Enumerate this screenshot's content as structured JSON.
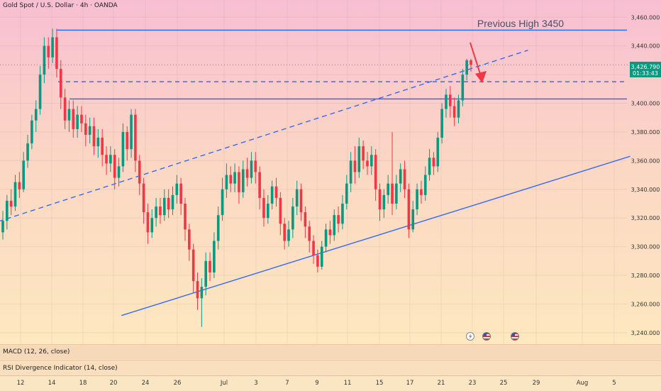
{
  "header": {
    "title": "Gold Spot / U.S. Dollar · 4h · OANDA"
  },
  "annotation": {
    "text": "Previous High 3450"
  },
  "price_badge": {
    "price": "3,426.790",
    "countdown": "01:33:43",
    "color": "#089981"
  },
  "indicators": {
    "macd": "MACD (12, 26, close)",
    "rsi": "RSI Divergence Indicator (14, close)"
  },
  "time_axis": [
    "12",
    "14",
    "18",
    "20",
    "24",
    "26",
    "Jul",
    "3",
    "7",
    "9",
    "11",
    "15",
    "17",
    "21",
    "23",
    "25",
    "29",
    "Aug",
    "5"
  ],
  "events": [
    {
      "icon": "lightning-icon"
    },
    {
      "icon": "us-flag-icon"
    },
    {
      "icon": "us-flag-icon"
    }
  ],
  "colors": {
    "up": "#089981",
    "down": "#f23645",
    "line": "#2962ff",
    "arrow": "#f23645"
  },
  "chart_data": {
    "type": "candlestick",
    "title": "Gold Spot / U.S. Dollar · 4h · OANDA",
    "y_ticks": [
      "3,460.000",
      "3,440.000",
      "3,420.000",
      "3,400.000",
      "3,380.000",
      "3,360.000",
      "3,340.000",
      "3,320.000",
      "3,300.000",
      "3,280.000",
      "3,260.000",
      "3,240.000"
    ],
    "ylim": [
      3232,
      3472
    ],
    "x_categories": [
      "12",
      "14",
      "18",
      "20",
      "24",
      "26",
      "Jul",
      "3",
      "7",
      "9",
      "11",
      "15",
      "17",
      "21",
      "23",
      "25",
      "29",
      "Aug",
      "5"
    ],
    "current_price": 3426.79,
    "horizontal_levels": [
      {
        "price": 3451,
        "style": "solid"
      },
      {
        "price": 3415,
        "style": "dashed"
      },
      {
        "price": 3403,
        "style": "solid"
      }
    ],
    "trendlines": [
      {
        "from": {
          "date": "Jun 9",
          "price": 3312
        },
        "to": {
          "date": "Jul 28",
          "price": 3437
        },
        "style": "dashed"
      },
      {
        "from": {
          "date": "Jun 21",
          "price": 3252
        },
        "to": {
          "date": "Aug 7",
          "price": 3363
        },
        "style": "solid"
      }
    ],
    "candles": [
      [
        3310,
        3318,
        3305,
        3325
      ],
      [
        3318,
        3332,
        3312,
        3336
      ],
      [
        3332,
        3328,
        3322,
        3340
      ],
      [
        3328,
        3345,
        3325,
        3350
      ],
      [
        3345,
        3340,
        3334,
        3352
      ],
      [
        3340,
        3360,
        3338,
        3366
      ],
      [
        3360,
        3372,
        3355,
        3378
      ],
      [
        3372,
        3388,
        3368,
        3392
      ],
      [
        3388,
        3396,
        3380,
        3402
      ],
      [
        3396,
        3420,
        3392,
        3426
      ],
      [
        3420,
        3440,
        3414,
        3446
      ],
      [
        3440,
        3432,
        3424,
        3446
      ],
      [
        3432,
        3446,
        3428,
        3452
      ],
      [
        3446,
        3424,
        3418,
        3452
      ],
      [
        3424,
        3404,
        3396,
        3430
      ],
      [
        3404,
        3388,
        3382,
        3410
      ],
      [
        3388,
        3396,
        3380,
        3402
      ],
      [
        3396,
        3382,
        3376,
        3402
      ],
      [
        3382,
        3392,
        3376,
        3398
      ],
      [
        3392,
        3386,
        3380,
        3398
      ],
      [
        3386,
        3378,
        3370,
        3392
      ],
      [
        3378,
        3384,
        3372,
        3390
      ],
      [
        3384,
        3370,
        3364,
        3390
      ],
      [
        3370,
        3376,
        3362,
        3382
      ],
      [
        3376,
        3364,
        3356,
        3382
      ],
      [
        3364,
        3358,
        3350,
        3370
      ],
      [
        3358,
        3364,
        3352,
        3370
      ],
      [
        3364,
        3348,
        3340,
        3368
      ],
      [
        3348,
        3356,
        3342,
        3362
      ],
      [
        3356,
        3380,
        3352,
        3386
      ],
      [
        3380,
        3368,
        3360,
        3384
      ],
      [
        3368,
        3392,
        3362,
        3396
      ],
      [
        3392,
        3360,
        3352,
        3396
      ],
      [
        3360,
        3344,
        3336,
        3364
      ],
      [
        3344,
        3324,
        3316,
        3348
      ],
      [
        3324,
        3310,
        3302,
        3330
      ],
      [
        3310,
        3320,
        3306,
        3326
      ],
      [
        3320,
        3328,
        3314,
        3334
      ],
      [
        3328,
        3322,
        3316,
        3334
      ],
      [
        3322,
        3334,
        3318,
        3340
      ],
      [
        3334,
        3326,
        3320,
        3340
      ],
      [
        3326,
        3336,
        3322,
        3342
      ],
      [
        3336,
        3344,
        3330,
        3350
      ],
      [
        3344,
        3330,
        3322,
        3348
      ],
      [
        3330,
        3312,
        3304,
        3334
      ],
      [
        3312,
        3298,
        3290,
        3316
      ],
      [
        3298,
        3276,
        3268,
        3302
      ],
      [
        3276,
        3264,
        3256,
        3282
      ],
      [
        3264,
        3272,
        3244,
        3278
      ],
      [
        3272,
        3290,
        3266,
        3296
      ],
      [
        3290,
        3282,
        3276,
        3296
      ],
      [
        3282,
        3304,
        3278,
        3310
      ],
      [
        3304,
        3322,
        3298,
        3328
      ],
      [
        3322,
        3340,
        3318,
        3348
      ],
      [
        3340,
        3350,
        3334,
        3358
      ],
      [
        3350,
        3344,
        3338,
        3356
      ],
      [
        3344,
        3352,
        3338,
        3358
      ],
      [
        3352,
        3338,
        3330,
        3356
      ],
      [
        3338,
        3354,
        3334,
        3360
      ],
      [
        3354,
        3348,
        3342,
        3362
      ],
      [
        3348,
        3360,
        3344,
        3366
      ],
      [
        3360,
        3352,
        3344,
        3366
      ],
      [
        3352,
        3334,
        3326,
        3356
      ],
      [
        3334,
        3320,
        3314,
        3340
      ],
      [
        3320,
        3330,
        3316,
        3336
      ],
      [
        3330,
        3342,
        3326,
        3346
      ],
      [
        3342,
        3334,
        3328,
        3348
      ],
      [
        3334,
        3316,
        3308,
        3338
      ],
      [
        3316,
        3304,
        3298,
        3320
      ],
      [
        3304,
        3312,
        3300,
        3318
      ],
      [
        3312,
        3328,
        3306,
        3334
      ],
      [
        3328,
        3340,
        3322,
        3346
      ],
      [
        3340,
        3324,
        3318,
        3344
      ],
      [
        3324,
        3314,
        3306,
        3328
      ],
      [
        3314,
        3304,
        3296,
        3318
      ],
      [
        3304,
        3294,
        3288,
        3308
      ],
      [
        3294,
        3286,
        3282,
        3298
      ],
      [
        3286,
        3300,
        3284,
        3304
      ],
      [
        3300,
        3312,
        3296,
        3316
      ],
      [
        3312,
        3308,
        3302,
        3318
      ],
      [
        3308,
        3322,
        3304,
        3326
      ],
      [
        3322,
        3316,
        3310,
        3328
      ],
      [
        3316,
        3330,
        3312,
        3336
      ],
      [
        3330,
        3344,
        3326,
        3350
      ],
      [
        3344,
        3360,
        3338,
        3366
      ],
      [
        3360,
        3352,
        3344,
        3370
      ],
      [
        3352,
        3370,
        3348,
        3376
      ],
      [
        3370,
        3360,
        3354,
        3374
      ],
      [
        3360,
        3356,
        3350,
        3366
      ],
      [
        3356,
        3364,
        3350,
        3370
      ],
      [
        3364,
        3340,
        3332,
        3368
      ],
      [
        3340,
        3326,
        3318,
        3344
      ],
      [
        3326,
        3336,
        3320,
        3340
      ],
      [
        3336,
        3344,
        3330,
        3350
      ],
      [
        3344,
        3330,
        3322,
        3380
      ],
      [
        3330,
        3344,
        3326,
        3350
      ],
      [
        3344,
        3354,
        3338,
        3358
      ],
      [
        3354,
        3340,
        3334,
        3360
      ],
      [
        3340,
        3312,
        3306,
        3344
      ],
      [
        3312,
        3326,
        3310,
        3332
      ],
      [
        3326,
        3340,
        3322,
        3344
      ],
      [
        3340,
        3336,
        3330,
        3346
      ],
      [
        3336,
        3350,
        3332,
        3356
      ],
      [
        3350,
        3362,
        3346,
        3368
      ],
      [
        3362,
        3356,
        3350,
        3366
      ],
      [
        3356,
        3376,
        3352,
        3380
      ],
      [
        3376,
        3396,
        3372,
        3400
      ],
      [
        3396,
        3406,
        3390,
        3410
      ],
      [
        3406,
        3398,
        3390,
        3412
      ],
      [
        3398,
        3390,
        3384,
        3404
      ],
      [
        3390,
        3402,
        3386,
        3406
      ],
      [
        3402,
        3420,
        3398,
        3424
      ],
      [
        3420,
        3430,
        3416,
        3431
      ],
      [
        3430,
        3426.79,
        3422,
        3431
      ]
    ]
  }
}
